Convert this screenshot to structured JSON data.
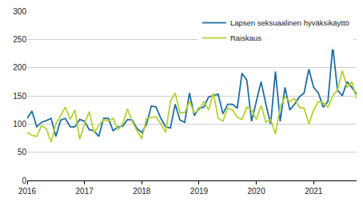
{
  "chart_data": {
    "type": "line",
    "categories": [
      "2016",
      null,
      null,
      null,
      null,
      null,
      null,
      null,
      null,
      null,
      null,
      null,
      "2017",
      null,
      null,
      null,
      null,
      null,
      null,
      null,
      null,
      null,
      null,
      null,
      "2018",
      null,
      null,
      null,
      null,
      null,
      null,
      null,
      null,
      null,
      null,
      null,
      "2019",
      null,
      null,
      null,
      null,
      null,
      null,
      null,
      null,
      null,
      null,
      null,
      "2020",
      null,
      null,
      null,
      null,
      null,
      null,
      null,
      null,
      null,
      null,
      null,
      "2021",
      null,
      null,
      null,
      null,
      null,
      null,
      null,
      null,
      null
    ],
    "series": [
      {
        "name": "Lapsen seksuaalinen hyväksikäyttö",
        "color": "#1f6fa3",
        "values": [
          110,
          123,
          95,
          103,
          106,
          110,
          78,
          107,
          110,
          95,
          95,
          108,
          105,
          90,
          88,
          78,
          110,
          110,
          88,
          95,
          96,
          108,
          107,
          92,
          85,
          100,
          132,
          130,
          110,
          95,
          93,
          135,
          107,
          103,
          155,
          115,
          128,
          130,
          148,
          150,
          153,
          118,
          135,
          135,
          128,
          190,
          178,
          105,
          140,
          175,
          135,
          100,
          193,
          105,
          165,
          125,
          135,
          148,
          155,
          197,
          165,
          155,
          130,
          140,
          238,
          160,
          150,
          175,
          165,
          153
        ]
      },
      {
        "name": "Raiskaus",
        "color": "#b5d334",
        "values": [
          85,
          80,
          78,
          97,
          92,
          68,
          100,
          115,
          130,
          108,
          125,
          73,
          100,
          122,
          85,
          97,
          108,
          105,
          110,
          90,
          100,
          127,
          105,
          88,
          74,
          110,
          112,
          113,
          100,
          85,
          140,
          155,
          120,
          120,
          140,
          120,
          125,
          140,
          125,
          155,
          110,
          105,
          128,
          125,
          112,
          108,
          130,
          125,
          108,
          133,
          103,
          108,
          82,
          130,
          148,
          140,
          145,
          130,
          128,
          100,
          125,
          140,
          138,
          130,
          150,
          160,
          195,
          165,
          175,
          145
        ]
      }
    ],
    "ylim": [
      0,
      300
    ],
    "yticks": [
      0,
      50,
      100,
      150,
      200,
      250,
      300
    ],
    "grid": true,
    "legend": "top-right"
  }
}
